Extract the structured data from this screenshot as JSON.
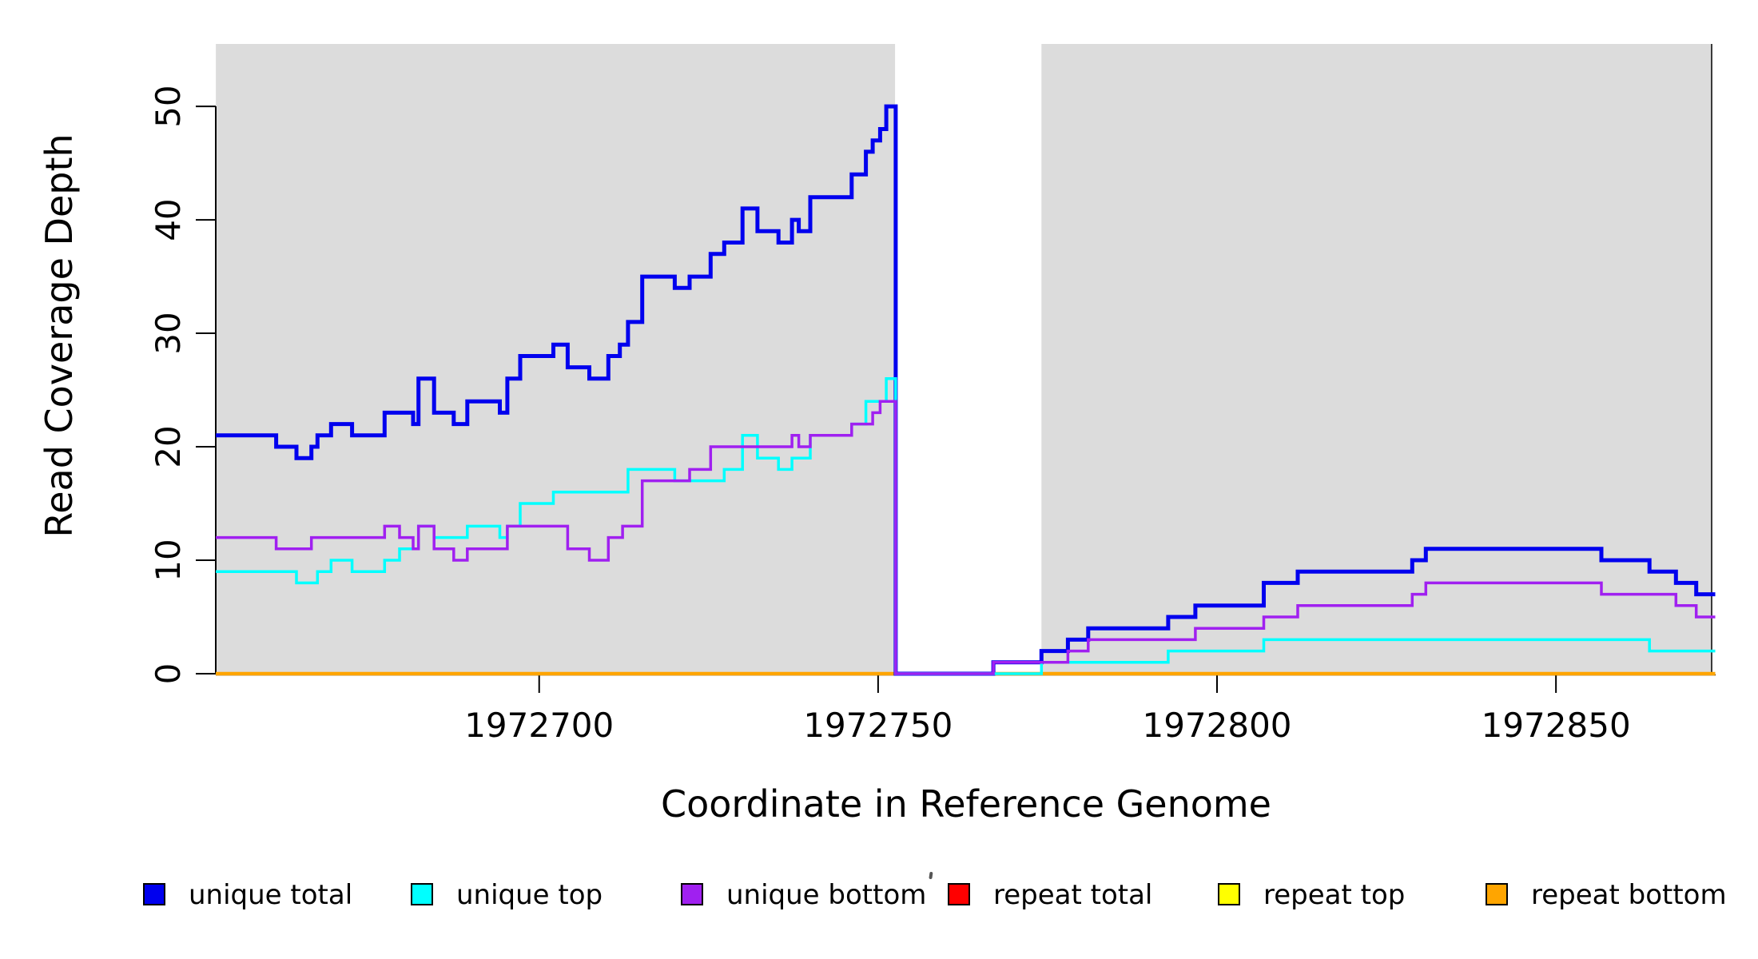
{
  "chart_data": {
    "type": "line",
    "subtype": "step",
    "title": "",
    "xlabel": "Coordinate in Reference Genome",
    "ylabel": "Read Coverage Depth",
    "xlim": [
      1972652.3,
      1972873.5
    ],
    "ylim": [
      0,
      55.5
    ],
    "grid": false,
    "legend_position": "bottom",
    "x_ticks": [
      {
        "value": 1972700,
        "label": "1972700"
      },
      {
        "value": 1972750,
        "label": "1972750"
      },
      {
        "value": 1972800,
        "label": "1972800"
      },
      {
        "value": 1972850,
        "label": "1972850"
      }
    ],
    "y_ticks": [
      {
        "value": 0,
        "label": "0"
      },
      {
        "value": 10,
        "label": "10"
      },
      {
        "value": 20,
        "label": "20"
      },
      {
        "value": 30,
        "label": "30"
      },
      {
        "value": 40,
        "label": "40"
      },
      {
        "value": 50,
        "label": "50"
      }
    ],
    "background_bands": {
      "color": "#DCDCDC",
      "regions": [
        [
          1972652.3,
          1972752.5
        ],
        [
          1972774.1,
          1972873.0
        ]
      ]
    },
    "series": [
      {
        "name": "unique total",
        "color": "#0000EE",
        "width": 5,
        "points": [
          [
            1972652.3,
            21
          ],
          [
            1972661.2,
            20
          ],
          [
            1972664.2,
            19
          ],
          [
            1972666.4,
            20
          ],
          [
            1972667.3,
            21
          ],
          [
            1972669.3,
            22
          ],
          [
            1972672.4,
            21
          ],
          [
            1972677.2,
            23
          ],
          [
            1972681.4,
            22
          ],
          [
            1972682.2,
            26
          ],
          [
            1972684.5,
            23
          ],
          [
            1972687.4,
            22
          ],
          [
            1972689.4,
            24
          ],
          [
            1972694.2,
            23
          ],
          [
            1972695.3,
            26
          ],
          [
            1972697.2,
            28
          ],
          [
            1972702.1,
            29
          ],
          [
            1972704.2,
            27
          ],
          [
            1972707.4,
            26
          ],
          [
            1972710.2,
            28
          ],
          [
            1972711.9,
            29
          ],
          [
            1972713.1,
            31
          ],
          [
            1972715.2,
            35
          ],
          [
            1972720,
            34
          ],
          [
            1972722.2,
            35
          ],
          [
            1972725.3,
            37
          ],
          [
            1972727.3,
            38
          ],
          [
            1972730,
            41
          ],
          [
            1972732.2,
            39
          ],
          [
            1972735.3,
            38
          ],
          [
            1972737.3,
            40
          ],
          [
            1972738.3,
            39
          ],
          [
            1972740,
            42
          ],
          [
            1972746.1,
            44
          ],
          [
            1972748.2,
            46
          ],
          [
            1972749.2,
            47
          ],
          [
            1972750.3,
            48
          ],
          [
            1972751.2,
            50
          ],
          [
            1972752.6,
            0
          ],
          [
            1972767,
            1
          ],
          [
            1972774.1,
            2
          ],
          [
            1972778,
            3
          ],
          [
            1972781,
            4
          ],
          [
            1972792.8,
            5
          ],
          [
            1972796.8,
            6
          ],
          [
            1972806.9,
            8
          ],
          [
            1972811.9,
            9
          ],
          [
            1972828.8,
            10
          ],
          [
            1972830.8,
            11
          ],
          [
            1972856.7,
            10
          ],
          [
            1972863.8,
            9
          ],
          [
            1972867.7,
            8
          ],
          [
            1972870.7,
            7
          ]
        ]
      },
      {
        "name": "unique top",
        "color": "#00FFFF",
        "width": 3.5,
        "points": [
          [
            1972652.3,
            9
          ],
          [
            1972664.2,
            8
          ],
          [
            1972667.3,
            9
          ],
          [
            1972669.3,
            10
          ],
          [
            1972672.4,
            9
          ],
          [
            1972677.2,
            10
          ],
          [
            1972679.4,
            11
          ],
          [
            1972682.2,
            13
          ],
          [
            1972684.5,
            12
          ],
          [
            1972689.4,
            13
          ],
          [
            1972694.2,
            12
          ],
          [
            1972695.3,
            13
          ],
          [
            1972697.2,
            15
          ],
          [
            1972702.1,
            16
          ],
          [
            1972713.1,
            18
          ],
          [
            1972720,
            17
          ],
          [
            1972727.3,
            18
          ],
          [
            1972730,
            21
          ],
          [
            1972732.2,
            19
          ],
          [
            1972735.3,
            18
          ],
          [
            1972737.3,
            19
          ],
          [
            1972740,
            21
          ],
          [
            1972746.1,
            22
          ],
          [
            1972748.2,
            24
          ],
          [
            1972751.2,
            26
          ],
          [
            1972752.6,
            0
          ],
          [
            1972774.1,
            1
          ],
          [
            1972792.8,
            2
          ],
          [
            1972806.9,
            3
          ],
          [
            1972863.8,
            2
          ]
        ]
      },
      {
        "name": "unique bottom",
        "color": "#A020F0",
        "width": 3.5,
        "points": [
          [
            1972652.3,
            12
          ],
          [
            1972661.2,
            11
          ],
          [
            1972666.4,
            12
          ],
          [
            1972677.2,
            13
          ],
          [
            1972679.4,
            12
          ],
          [
            1972681.4,
            11
          ],
          [
            1972682.2,
            13
          ],
          [
            1972684.5,
            11
          ],
          [
            1972687.4,
            10
          ],
          [
            1972689.4,
            11
          ],
          [
            1972695.3,
            13
          ],
          [
            1972704.2,
            11
          ],
          [
            1972707.4,
            10
          ],
          [
            1972710.2,
            12
          ],
          [
            1972712.3,
            13
          ],
          [
            1972715.2,
            17
          ],
          [
            1972722.2,
            18
          ],
          [
            1972725.3,
            20
          ],
          [
            1972737.3,
            21
          ],
          [
            1972738.3,
            20
          ],
          [
            1972740,
            21
          ],
          [
            1972746.1,
            22
          ],
          [
            1972749.2,
            23
          ],
          [
            1972750.3,
            24
          ],
          [
            1972752.6,
            0
          ],
          [
            1972767,
            1
          ],
          [
            1972778,
            2
          ],
          [
            1972781,
            3
          ],
          [
            1972796.8,
            4
          ],
          [
            1972806.9,
            5
          ],
          [
            1972811.9,
            6
          ],
          [
            1972828.8,
            7
          ],
          [
            1972830.8,
            8
          ],
          [
            1972856.7,
            7
          ],
          [
            1972867.7,
            6
          ],
          [
            1972870.7,
            5
          ]
        ]
      },
      {
        "name": "repeat total",
        "color": "#FF0000",
        "width": 3,
        "points": [
          [
            1972652.3,
            0
          ]
        ]
      },
      {
        "name": "repeat top",
        "color": "#FFFF00",
        "width": 3,
        "points": [
          [
            1972652.3,
            0
          ]
        ]
      },
      {
        "name": "repeat bottom",
        "color": "#FFA500",
        "width": 4.5,
        "points": [
          [
            1972652.3,
            0
          ]
        ]
      }
    ],
    "legend": [
      {
        "label": "unique total",
        "color": "#0000EE"
      },
      {
        "label": "unique top",
        "color": "#00FFFF"
      },
      {
        "label": "unique bottom",
        "color": "#A020F0"
      },
      {
        "label": "repeat total",
        "color": "#FF0000"
      },
      {
        "label": "repeat top",
        "color": "#FFFF00"
      },
      {
        "label": "repeat bottom",
        "color": "#FFA500"
      }
    ]
  }
}
